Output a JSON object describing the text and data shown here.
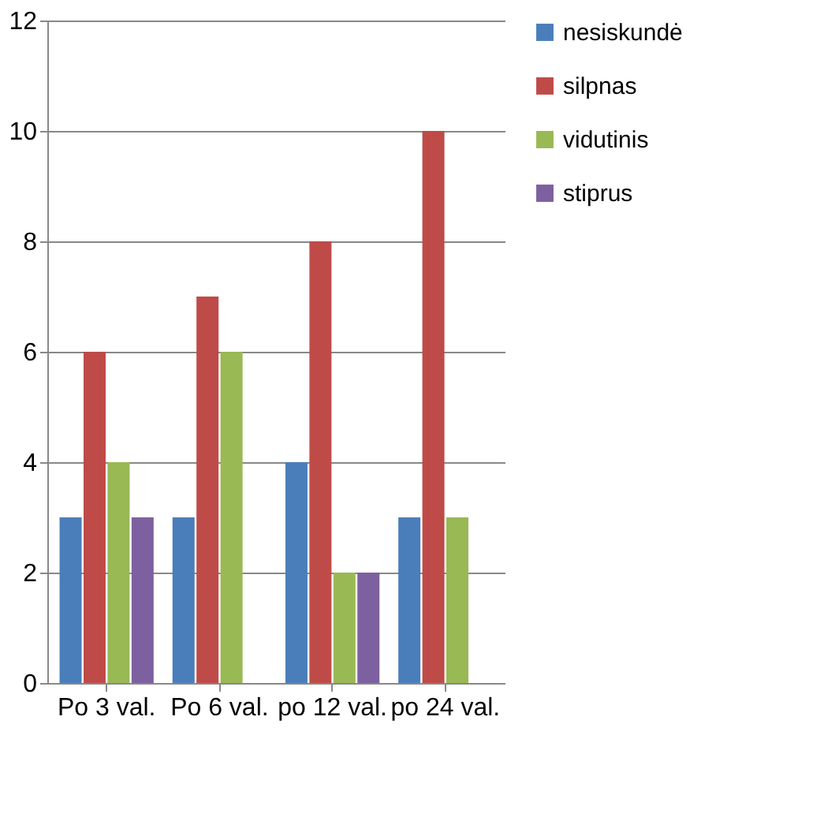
{
  "chart_data": {
    "type": "bar",
    "categories": [
      "Po 3 val.",
      "Po 6 val.",
      "po 12 val.",
      "po 24 val."
    ],
    "series": [
      {
        "name": "nesiskundė",
        "color": "#4a7ebb",
        "values": [
          3,
          3,
          4,
          3
        ]
      },
      {
        "name": "silpnas",
        "color": "#be4b48",
        "values": [
          6,
          7,
          8,
          10
        ]
      },
      {
        "name": "vidutinis",
        "color": "#98b954",
        "values": [
          4,
          6,
          2,
          3
        ]
      },
      {
        "name": "stiprus",
        "color": "#7d60a0",
        "values": [
          3,
          null,
          2,
          null
        ]
      }
    ],
    "ylim": [
      0,
      12
    ],
    "yticks": [
      0,
      2,
      4,
      6,
      8,
      10,
      12
    ],
    "grid": "y",
    "legend": "right"
  }
}
